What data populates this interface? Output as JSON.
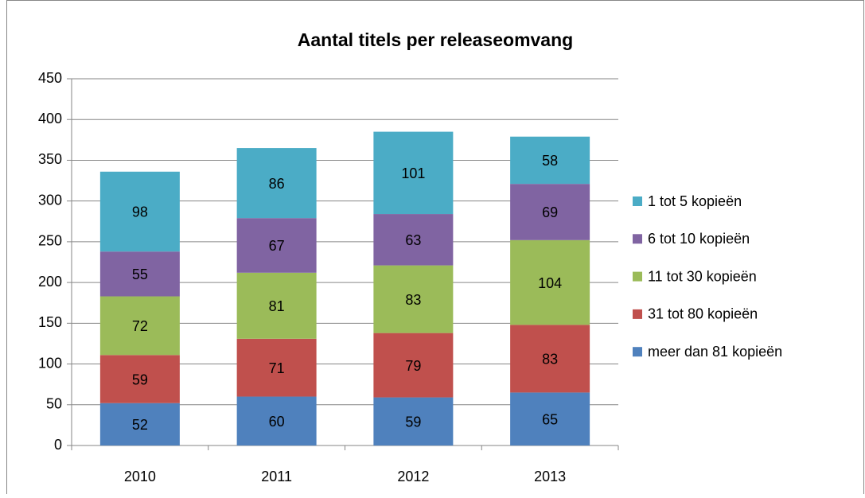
{
  "chart_data": {
    "type": "stacked_bar",
    "title": "Aantal titels per releaseomvang",
    "categories": [
      "2010",
      "2011",
      "2012",
      "2013"
    ],
    "series": [
      {
        "name": "meer dan 81 kopieën",
        "color": "#4f81bd",
        "values": [
          52,
          60,
          59,
          65
        ]
      },
      {
        "name": "31 tot 80 kopieën",
        "color": "#c0504d",
        "values": [
          59,
          71,
          79,
          83
        ]
      },
      {
        "name": "11 tot 30 kopieën",
        "color": "#9bbb59",
        "values": [
          72,
          81,
          83,
          104
        ]
      },
      {
        "name": "6 tot 10 kopieën",
        "color": "#8064a2",
        "values": [
          55,
          67,
          63,
          69
        ]
      },
      {
        "name": "1 tot 5 kopieën",
        "color": "#4bacc6",
        "values": [
          98,
          86,
          101,
          58
        ]
      }
    ],
    "ylim": [
      0,
      450
    ],
    "yticks": [
      0,
      50,
      100,
      150,
      200,
      250,
      300,
      350,
      400,
      450
    ],
    "grid": true,
    "legend": "right"
  }
}
